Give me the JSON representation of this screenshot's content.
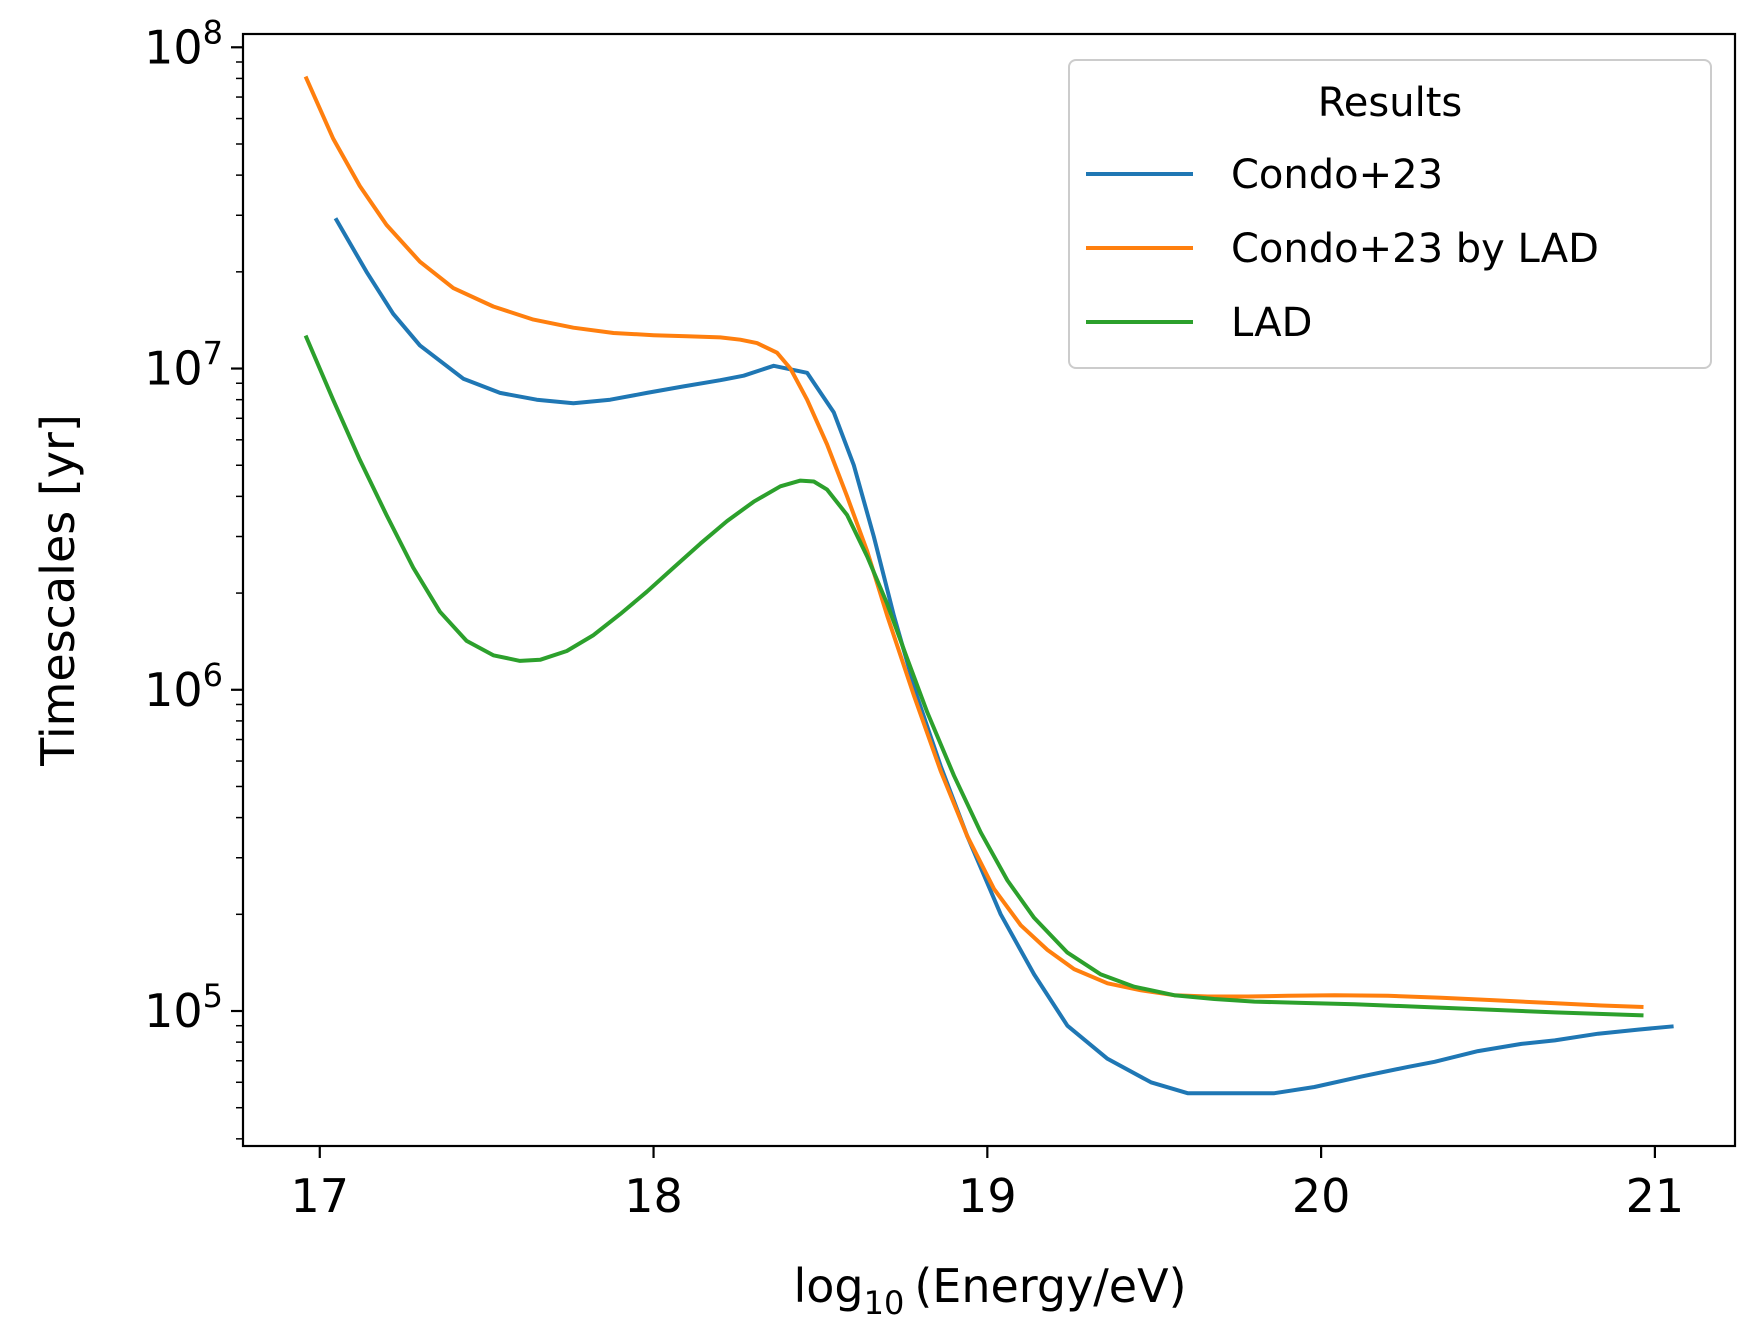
{
  "chart_data": {
    "type": "line",
    "title": "",
    "xlabel": "log10 (Energy/eV)",
    "xlabel_parts": {
      "base": "log",
      "sub": "10",
      "rest": "(Energy/eV)"
    },
    "ylabel": "Timescales [yr]",
    "xlim": [
      16.77,
      21.24
    ],
    "ylim": [
      38000,
      110000000
    ],
    "yscale": "log",
    "grid": false,
    "x_ticks": [
      "17",
      "18",
      "19",
      "20",
      "21"
    ],
    "y_ticks": [
      {
        "base": "10",
        "exp": "5"
      },
      {
        "base": "10",
        "exp": "6"
      },
      {
        "base": "10",
        "exp": "7"
      },
      {
        "base": "10",
        "exp": "8"
      }
    ],
    "legend": {
      "title": "Results",
      "placement": "upper right"
    },
    "series": [
      {
        "name": "Condo+23",
        "color": "#1f77b4",
        "x": [
          17.05,
          17.14,
          17.22,
          17.3,
          17.43,
          17.54,
          17.65,
          17.76,
          17.87,
          17.98,
          18.09,
          18.2,
          18.27,
          18.36,
          18.46,
          18.54,
          18.6,
          18.66,
          18.72,
          18.79,
          18.86,
          18.94,
          19.04,
          19.14,
          19.24,
          19.36,
          19.49,
          19.6,
          19.75,
          19.86,
          19.98,
          20.12,
          20.26,
          20.34,
          20.47,
          20.6,
          20.7,
          20.83,
          20.95,
          21.05
        ],
        "y": [
          29000000,
          20000000,
          14800000,
          11800000,
          9300000,
          8400000,
          8000000,
          7800000,
          8000000,
          8400000,
          8800000,
          9200000,
          9500000,
          10200000,
          9700000,
          7300000,
          5000000,
          3000000,
          1700000,
          950000,
          580000,
          350000,
          200000,
          130000,
          90000,
          71000,
          60000,
          55500,
          55500,
          55500,
          58000,
          62500,
          67000,
          69500,
          75000,
          79000,
          81000,
          85000,
          87500,
          89500
        ]
      },
      {
        "name": "Condo+23 by LAD",
        "color": "#ff7f0e",
        "x": [
          16.96,
          17.04,
          17.12,
          17.2,
          17.3,
          17.4,
          17.52,
          17.64,
          17.76,
          17.88,
          18.0,
          18.1,
          18.2,
          18.26,
          18.31,
          18.37,
          18.41,
          18.46,
          18.52,
          18.58,
          18.64,
          18.7,
          18.78,
          18.86,
          18.94,
          19.02,
          19.1,
          19.18,
          19.26,
          19.36,
          19.46,
          19.56,
          19.66,
          19.78,
          19.9,
          20.04,
          20.2,
          20.36,
          20.52,
          20.68,
          20.84,
          20.96
        ],
        "y": [
          80000000,
          52000000,
          37000000,
          28000000,
          21500000,
          17800000,
          15600000,
          14200000,
          13400000,
          12900000,
          12700000,
          12600000,
          12500000,
          12300000,
          12000000,
          11200000,
          10000000,
          8000000,
          5800000,
          4000000,
          2700000,
          1700000,
          960000,
          560000,
          350000,
          240000,
          185000,
          155000,
          135000,
          122000,
          116000,
          112000,
          111000,
          111000,
          111500,
          112000,
          111500,
          110000,
          108000,
          106000,
          104000,
          103000
        ]
      },
      {
        "name": "LAD",
        "color": "#2ca02c",
        "x": [
          16.96,
          17.04,
          17.12,
          17.2,
          17.28,
          17.36,
          17.44,
          17.52,
          17.6,
          17.66,
          17.74,
          17.82,
          17.9,
          17.98,
          18.06,
          18.14,
          18.22,
          18.3,
          18.38,
          18.44,
          18.48,
          18.52,
          18.58,
          18.64,
          18.7,
          18.76,
          18.82,
          18.9,
          18.98,
          19.06,
          19.14,
          19.24,
          19.34,
          19.44,
          19.56,
          19.68,
          19.8,
          19.94,
          20.1,
          20.3,
          20.5,
          20.7,
          20.96
        ],
        "y": [
          12500000,
          8000000,
          5200000,
          3500000,
          2400000,
          1750000,
          1420000,
          1280000,
          1230000,
          1240000,
          1320000,
          1480000,
          1720000,
          2020000,
          2400000,
          2850000,
          3350000,
          3850000,
          4300000,
          4480000,
          4450000,
          4200000,
          3500000,
          2600000,
          1850000,
          1250000,
          850000,
          540000,
          360000,
          255000,
          195000,
          152000,
          130000,
          119000,
          112000,
          109000,
          107000,
          106000,
          105000,
          103000,
          101000,
          99000,
          97000
        ]
      }
    ]
  }
}
